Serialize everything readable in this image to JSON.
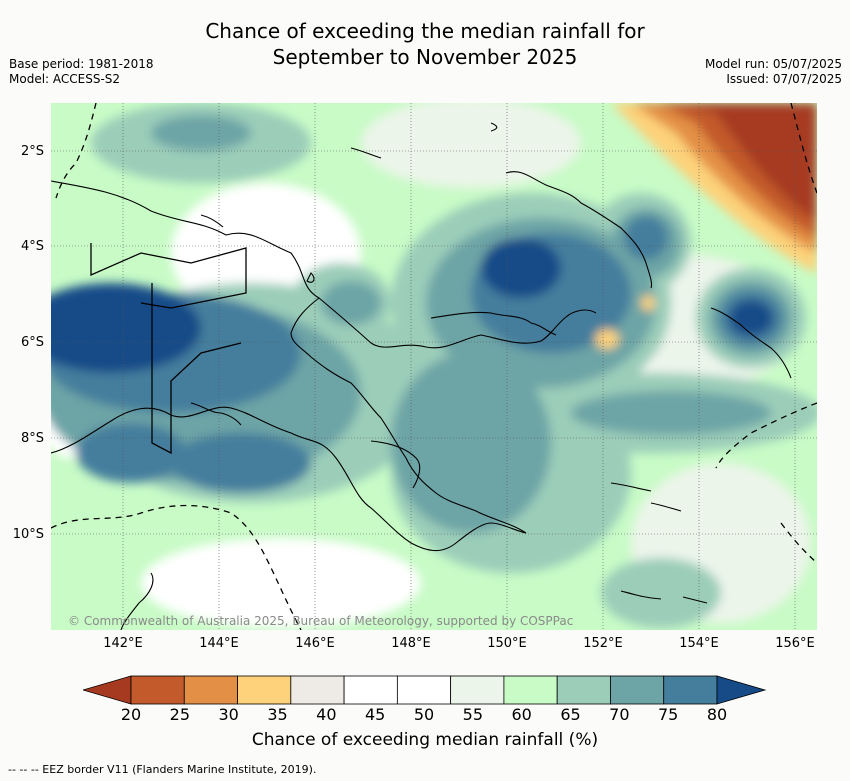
{
  "title_line1": "Chance of exceeding the median rainfall for",
  "title_line2": "September to November 2025",
  "meta_left": [
    "Base period: 1981-2018",
    "Model: ACCESS-S2"
  ],
  "meta_right": [
    "Model run: 05/07/2025",
    "Issued: 07/07/2025"
  ],
  "lat_labels": [
    "2°S",
    "4°S",
    "6°S",
    "8°S",
    "10°S"
  ],
  "lon_labels": [
    "142°E",
    "144°E",
    "146°E",
    "148°E",
    "150°E",
    "152°E",
    "154°E",
    "156°E"
  ],
  "copyright": "© Commonwealth of Australia 2025, Bureau of Meteorology, supported by COSPPac",
  "colorbar": {
    "ticks": [
      "20",
      "25",
      "30",
      "35",
      "40",
      "45",
      "50",
      "55",
      "60",
      "65",
      "70",
      "75",
      "80"
    ],
    "colors": [
      "#a63a20",
      "#c25a2c",
      "#e38f45",
      "#fdd27a",
      "#eeeae6",
      "#ffffff",
      "#ffffff",
      "#ecf5ea",
      "#c8fbc6",
      "#9bcdb9",
      "#6da4a6",
      "#457e9d",
      "#174b88"
    ],
    "label": "Chance of exceeding median rainfall (%)"
  },
  "footer": "--  --  -- EEZ border V11 (Flanders Marine Institute, 2019)."
}
